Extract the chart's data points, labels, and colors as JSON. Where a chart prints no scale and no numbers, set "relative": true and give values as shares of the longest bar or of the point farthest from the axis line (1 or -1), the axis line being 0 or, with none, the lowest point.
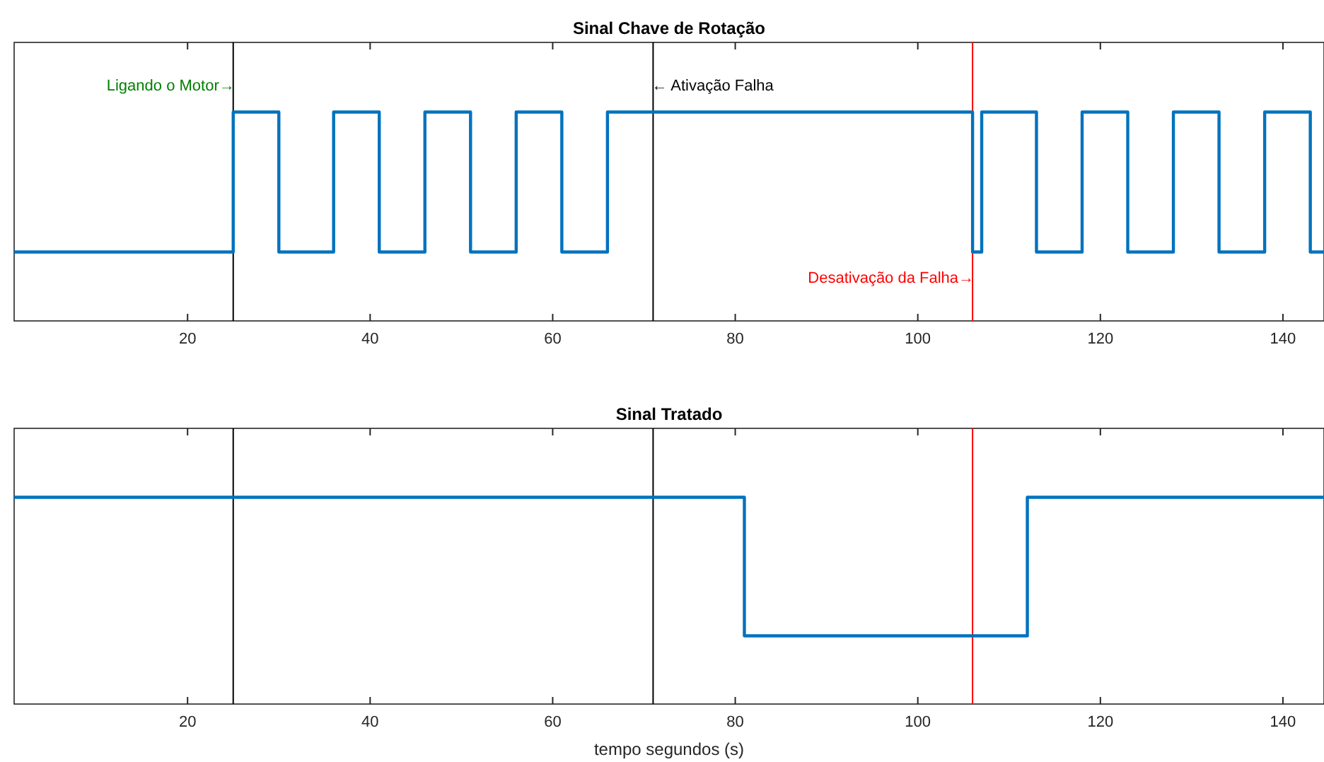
{
  "chart_data": [
    {
      "type": "step",
      "title": "Sinal Chave de Rotação",
      "relative": true,
      "xlim": [
        1,
        144.5
      ],
      "xticks": [
        20,
        40,
        60,
        80,
        100,
        120,
        140
      ],
      "grid": false,
      "series": [
        {
          "color": "#0072bd",
          "x": [
            1,
            25,
            30,
            36,
            41,
            46,
            51,
            56,
            61,
            66,
            106,
            107,
            113,
            118,
            123,
            128,
            133,
            138,
            143,
            144.5
          ],
          "values": [
            0.33,
            1,
            0.33,
            1,
            0.33,
            1,
            0.33,
            1,
            0.33,
            1,
            0.33,
            1,
            0.33,
            1,
            0.33,
            1,
            0.33,
            1,
            0.33,
            0.33
          ]
        }
      ],
      "ref_lines": [
        {
          "axis": "x",
          "value": 25,
          "label": "Ligando o Motor→",
          "color": "#000000"
        },
        {
          "axis": "x",
          "value": 71,
          "label": "← Ativação Falha",
          "color": "#000000"
        },
        {
          "axis": "x",
          "value": 106,
          "label": "Desativação da Falha→",
          "color": "#ff0000"
        }
      ]
    },
    {
      "type": "step",
      "title": "Sinal Tratado",
      "xlabel": "tempo segundos (s)",
      "relative": true,
      "xlim": [
        1,
        144.5
      ],
      "xticks": [
        20,
        40,
        60,
        80,
        100,
        120,
        140
      ],
      "grid": false,
      "series": [
        {
          "color": "#0072bd",
          "x": [
            1,
            81,
            112,
            144.5
          ],
          "values": [
            1,
            0.33,
            1,
            1
          ]
        }
      ],
      "ref_lines": [
        {
          "axis": "x",
          "value": 25,
          "color": "#000000"
        },
        {
          "axis": "x",
          "value": 71,
          "color": "#000000"
        },
        {
          "axis": "x",
          "value": 106,
          "color": "#ff0000"
        }
      ]
    }
  ]
}
